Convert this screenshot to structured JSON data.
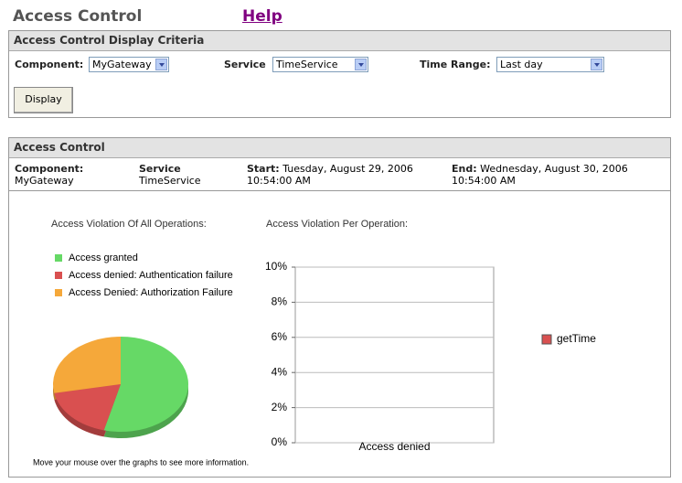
{
  "header": {
    "title": "Access Control",
    "help": "Help"
  },
  "criteria": {
    "title": "Access Control Display Criteria",
    "fields": [
      {
        "label": "Component:",
        "value": "MyGateway"
      },
      {
        "label": "Service",
        "value": "TimeService"
      },
      {
        "label": "Time Range:",
        "value": "Last day"
      }
    ],
    "button": "Display"
  },
  "results": {
    "title": "Access Control",
    "component": {
      "label": "Component:",
      "value": "MyGateway"
    },
    "service": {
      "label": "Service",
      "value": "TimeService"
    },
    "start": {
      "label": "Start:",
      "date": "Tuesday, August 29, 2006",
      "time": "10:54:00 AM"
    },
    "end": {
      "label": "End:",
      "date": "Wednesday, August 30, 2006",
      "time": "10:54:00 AM"
    },
    "note": "Move your mouse over the graphs to see more information."
  },
  "chart_data": [
    {
      "type": "pie",
      "title": "Access Violation Of All Operations:",
      "categories": [
        "Access granted",
        "Access denied: Authentication failure",
        "Access Denied: Authorization Failure"
      ],
      "values": [
        54,
        18,
        28
      ],
      "colors": [
        "#66d966",
        "#d95050",
        "#f5a83a"
      ]
    },
    {
      "type": "bar",
      "title": "Access Violation Per Operation:",
      "categories": [
        "Access denied"
      ],
      "series": [
        {
          "name": "getTime",
          "color": "#d95050",
          "values": [
            0
          ]
        }
      ],
      "ylim": [
        0,
        10
      ],
      "yticks": [
        {
          "value": 0,
          "label": "0%"
        },
        {
          "value": 2,
          "label": "2%"
        },
        {
          "value": 4,
          "label": "4%"
        },
        {
          "value": 6,
          "label": "6%"
        },
        {
          "value": 8,
          "label": "8%"
        },
        {
          "value": 10,
          "label": "10%"
        }
      ],
      "grid": true
    }
  ]
}
